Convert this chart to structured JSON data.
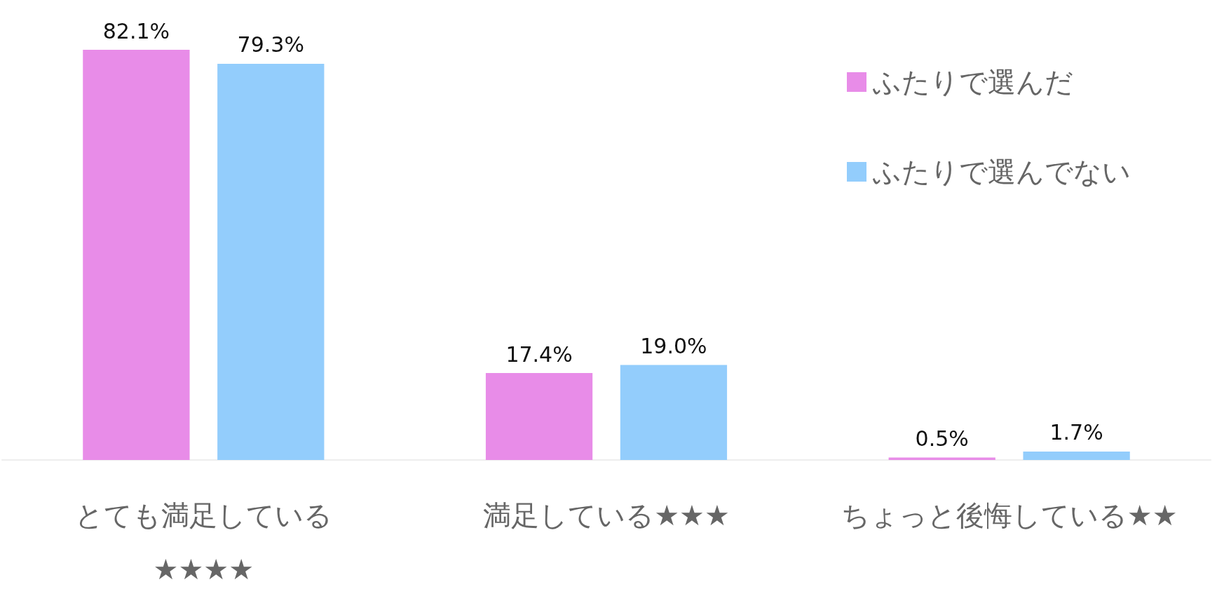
{
  "chart_data": {
    "type": "bar",
    "categories": [
      "とても満足している\n★★★★",
      "満足している★★★",
      "ちょっと後悔している★★"
    ],
    "series": [
      {
        "name": "ふたりで選んだ",
        "color": "#e88ce8",
        "values": [
          82.1,
          17.4,
          0.5
        ],
        "value_labels": [
          "82.1%",
          "17.4%",
          "0.5%"
        ]
      },
      {
        "name": "ふたりで選んでない",
        "color": "#93cdfc",
        "values": [
          79.3,
          19.0,
          1.7
        ],
        "value_labels": [
          "79.3%",
          "19.0%",
          "1.7%"
        ]
      }
    ],
    "legend": "top right",
    "tick_labels": "x"
  }
}
